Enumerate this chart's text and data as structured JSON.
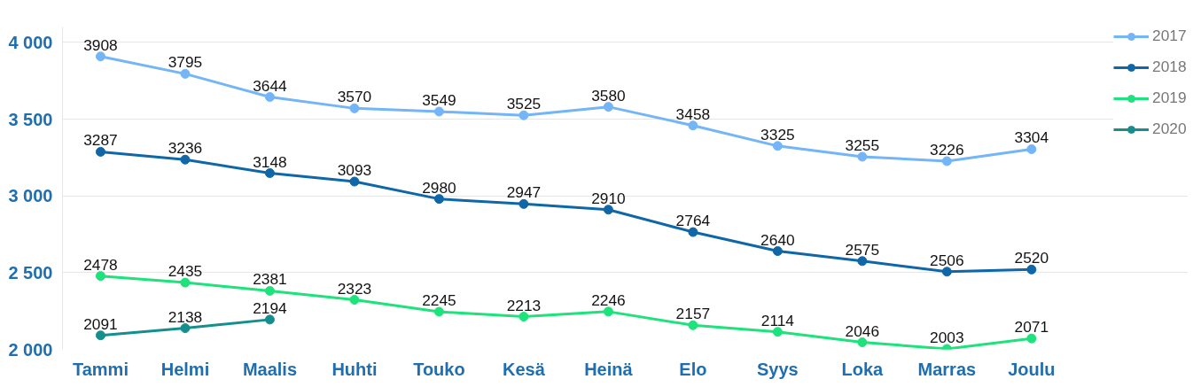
{
  "chart_data": {
    "type": "line",
    "categories": [
      "Tammi",
      "Helmi",
      "Maalis",
      "Huhti",
      "Touko",
      "Kesä",
      "Heinä",
      "Elo",
      "Syys",
      "Loka",
      "Marras",
      "Joulu"
    ],
    "series": [
      {
        "name": "2017",
        "color": "#74b5f7",
        "values": [
          3908,
          3795,
          3644,
          3570,
          3549,
          3525,
          3580,
          3458,
          3325,
          3255,
          3226,
          3304
        ]
      },
      {
        "name": "2018",
        "color": "#0f67a8",
        "values": [
          3287,
          3236,
          3148,
          3093,
          2980,
          2947,
          2910,
          2764,
          2640,
          2575,
          2506,
          2520
        ]
      },
      {
        "name": "2019",
        "color": "#1ee27c",
        "values": [
          2478,
          2435,
          2381,
          2323,
          2245,
          2213,
          2246,
          2157,
          2114,
          2046,
          2003,
          2071
        ]
      },
      {
        "name": "2020",
        "color": "#148f8d",
        "values": [
          2091,
          2138,
          2194,
          null,
          null,
          null,
          null,
          null,
          null,
          null,
          null,
          null
        ]
      }
    ],
    "ylim": [
      2000,
      4100
    ],
    "yticks": [
      {
        "value": 2000,
        "label": "2 000"
      },
      {
        "value": 2500,
        "label": "2 500"
      },
      {
        "value": 3000,
        "label": "3 000"
      },
      {
        "value": 3500,
        "label": "3 500"
      },
      {
        "value": 4000,
        "label": "4 000"
      }
    ],
    "grid": "y",
    "legend": "top right",
    "marker": "circle",
    "line_style": "solid",
    "data_labels": true
  }
}
